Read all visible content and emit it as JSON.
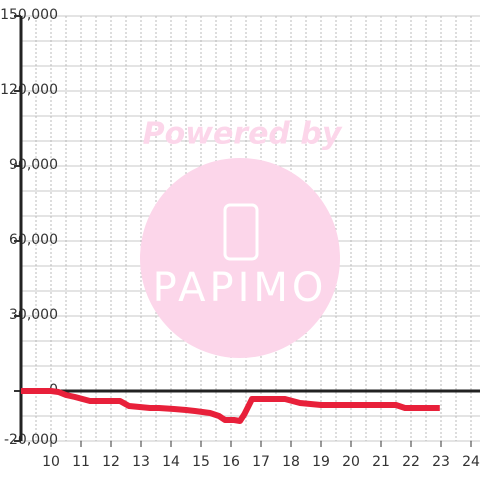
{
  "chart_data": {
    "type": "line",
    "watermark": {
      "caption": "Powered by",
      "brand": "PAPIMO"
    },
    "x": [
      9,
      10,
      10.25,
      10.5,
      10.8,
      11.3,
      12.3,
      12.6,
      13.3,
      13.6,
      14.1,
      14.5,
      14.8,
      15.3,
      15.6,
      15.8,
      16.1,
      16.3,
      16.45,
      16.7,
      17,
      17.8,
      18.3,
      19,
      19.6,
      21.5,
      21.8,
      22.96
    ],
    "series": [
      {
        "color": "#e8203a",
        "values": [
          0,
          0,
          -400,
          -1600,
          -2400,
          -4000,
          -4000,
          -6000,
          -6800,
          -6800,
          -7200,
          -7600,
          -8000,
          -8800,
          -10000,
          -11600,
          -11600,
          -12000,
          -9200,
          -3200,
          -3200,
          -3200,
          -4800,
          -5600,
          -5600,
          -5600,
          -6800,
          -6800
        ]
      }
    ],
    "xlim": [
      9,
      24.3
    ],
    "xticks": [
      10,
      11,
      12,
      13,
      14,
      15,
      16,
      17,
      18,
      19,
      20,
      21,
      22,
      23,
      24
    ],
    "ylim": [
      -20000,
      150000
    ],
    "yticks": [
      {
        "value": -20000,
        "label": "-20,000"
      },
      0,
      {
        "value": 30000,
        "label": "30,000"
      },
      {
        "value": 60000,
        "label": "60,000"
      },
      {
        "value": 90000,
        "label": "90,000"
      },
      {
        "value": 120000,
        "label": "120,000"
      },
      {
        "value": 150000,
        "label": "150,000"
      }
    ],
    "minor_xstep": 0.5,
    "minor_ystep": 10000,
    "grid": true
  }
}
